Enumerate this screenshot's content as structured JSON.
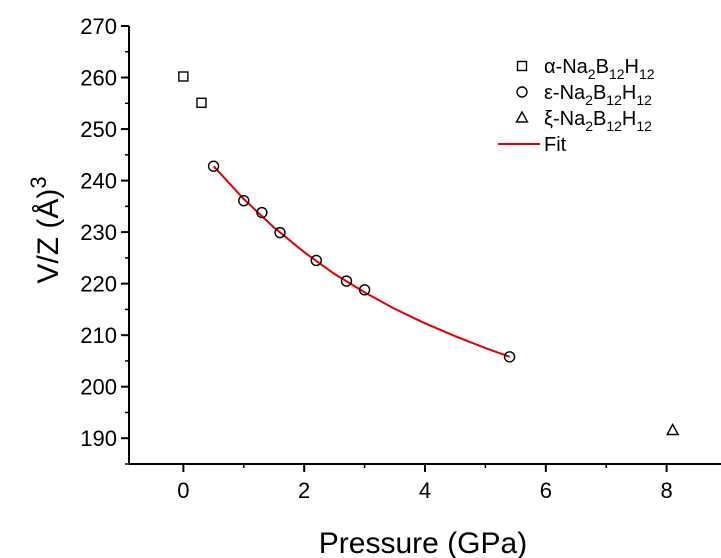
{
  "chart_data": {
    "type": "scatter",
    "xlabel": "Pressure (GPa)",
    "ylabel": "V/Z (Å)",
    "ylabel_superscript": "3",
    "xlim": [
      -0.9,
      8.9
    ],
    "ylim": [
      185,
      270
    ],
    "xticks": [
      0,
      2,
      4,
      6,
      8
    ],
    "yticks": [
      190,
      200,
      210,
      220,
      230,
      240,
      250,
      260,
      270
    ],
    "legend_position": "top-right",
    "series": [
      {
        "name": "α-Na2B12H12",
        "label_parts": {
          "greek": "α",
          "prefix": "-Na",
          "s1": "2",
          "b": "B",
          "s2": "12",
          "h": "H",
          "s3": "12"
        },
        "marker": "square",
        "color": "#000000",
        "x": [
          0.0,
          0.3
        ],
        "y": [
          260.2,
          255.1
        ]
      },
      {
        "name": "ε-Na2B12H12",
        "label_parts": {
          "greek": "ε",
          "prefix": "-Na",
          "s1": "2",
          "b": "B",
          "s2": "12",
          "h": "H",
          "s3": "12"
        },
        "marker": "circle",
        "color": "#000000",
        "x": [
          0.5,
          1.0,
          1.3,
          1.6,
          2.2,
          2.7,
          3.0,
          5.4
        ],
        "y": [
          242.8,
          236.1,
          233.8,
          229.9,
          224.5,
          220.5,
          218.8,
          205.8
        ]
      },
      {
        "name": "ξ-Na2B12H12",
        "label_parts": {
          "greek": "ξ",
          "prefix": "-Na",
          "s1": "2",
          "b": "B",
          "s2": "12",
          "h": "H",
          "s3": "12"
        },
        "marker": "triangle",
        "color": "#000000",
        "x": [
          8.1
        ],
        "y": [
          191.5
        ]
      },
      {
        "name": "Fit",
        "marker": "line",
        "color": "#e00000",
        "x": [
          0.5,
          1.0,
          1.5,
          2.0,
          2.5,
          3.0,
          3.5,
          4.0,
          4.5,
          5.0,
          5.4
        ],
        "y": [
          242.8,
          236.4,
          230.9,
          226.1,
          221.9,
          218.3,
          215.1,
          212.3,
          209.8,
          207.5,
          205.8
        ]
      }
    ]
  }
}
